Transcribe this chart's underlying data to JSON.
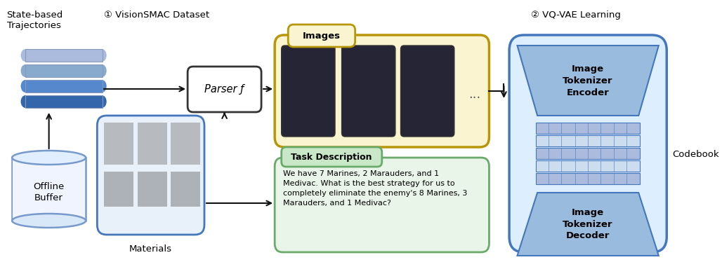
{
  "bg_color": "#ffffff",
  "state_text": "State-based\nTrajectories",
  "step1_text": "① VisionSMAC Dataset",
  "step2_text": "② VQ-VAE Learning",
  "images_text": "Images",
  "materials_text": "Materials",
  "offline_text": "Offline\nBuffer",
  "parser_text": "Parser ƒ",
  "task_title_text": "Task Description",
  "task_body_text": "We have 7 Marines, 2 Marauders, and 1\nMedivac. What is the best strategy for us to\ncompletely eliminate the enemy's 8 Marines, 3\nMarauders, and 1 Medivac?",
  "encoder_text": "Image\nTokenizer\nEncoder",
  "decoder_text": "Image\nTokenizer\nDecoder",
  "codebook_text": "Codebook",
  "colors": {
    "bg": "#ffffff",
    "db_blue": "#5588cc",
    "db_light": "#aabbdd",
    "db_stripe": "#8899bb",
    "offline_fill": "#f0f4ff",
    "offline_edge": "#7799cc",
    "parser_fill": "#ffffff",
    "parser_edge": "#333333",
    "images_edge": "#b8960a",
    "images_fill": "#faf5d0",
    "task_edge": "#6aaa6a",
    "task_fill": "#e8f5e8",
    "task_title_fill": "#c8e8c8",
    "materials_edge": "#4477bb",
    "materials_fill": "#e8f0fa",
    "vae_edge": "#4477bb",
    "vae_fill": "#ddeeff",
    "trap_fill": "#99bbdd",
    "trap_edge": "#4477bb",
    "codebook_fill1": "#aabbdd",
    "codebook_fill2": "#ccddf0",
    "codebook_edge": "#4477bb",
    "arrow": "#111111"
  }
}
